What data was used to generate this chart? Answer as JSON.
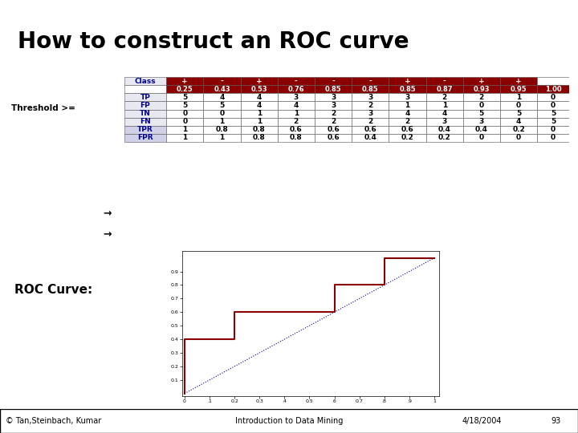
{
  "title": "How to construct an ROC curve",
  "title_fontsize": 20,
  "title_fontweight": "bold",
  "bg_color": "#ffffff",
  "bar1_color": "#00bcd4",
  "bar2_color": "#9c27b0",
  "table": {
    "col_headers": [
      "Class",
      "+",
      "-",
      "+",
      "-",
      "-",
      "-",
      "+",
      "-",
      "+",
      "+",
      ""
    ],
    "threshold_row": [
      "",
      "0.25",
      "0.43",
      "0.53",
      "0.76",
      "0.85",
      "0.85",
      "0.85",
      "0.87",
      "0.93",
      "0.95",
      "1.00"
    ],
    "rows": [
      [
        "TP",
        "5",
        "4",
        "4",
        "3",
        "3",
        "3",
        "3",
        "2",
        "2",
        "1",
        "0"
      ],
      [
        "FP",
        "5",
        "5",
        "4",
        "4",
        "3",
        "2",
        "1",
        "1",
        "0",
        "0",
        "0"
      ],
      [
        "TN",
        "0",
        "0",
        "1",
        "1",
        "2",
        "3",
        "4",
        "4",
        "5",
        "5",
        "5"
      ],
      [
        "FN",
        "0",
        "1",
        "1",
        "2",
        "2",
        "2",
        "2",
        "3",
        "3",
        "4",
        "5"
      ],
      [
        "TPR",
        "1",
        "0.8",
        "0.8",
        "0.6",
        "0.6",
        "0.6",
        "0.6",
        "0.4",
        "0.4",
        "0.2",
        "0"
      ],
      [
        "FPR",
        "1",
        "1",
        "0.8",
        "0.8",
        "0.6",
        "0.4",
        "0.2",
        "0.2",
        "0",
        "0",
        "0"
      ]
    ],
    "header_bg": "#8b0000",
    "header_text": "#ffffff",
    "threshold_bg": "#8b0000",
    "threshold_text": "#ffffff",
    "row_label_bg": "#e8e8f0",
    "row_label_text": "#00008b",
    "cell_bg": "#ffffff",
    "cell_text": "#000000",
    "highlight_rows": [
      4,
      5
    ],
    "highlight_bg": "#d0d0e8",
    "border_color": "#555555"
  },
  "roc_curve": {
    "fpr": [
      0,
      0,
      0,
      0.2,
      0.2,
      0.6,
      0.6,
      0.8,
      0.8,
      1.0,
      1.0
    ],
    "tpr": [
      0,
      0.2,
      0.4,
      0.4,
      0.6,
      0.6,
      0.8,
      0.8,
      1.0,
      1.0,
      1.0
    ],
    "color": "#8b0000",
    "linewidth": 1.5,
    "diagonal_color": "#00008b",
    "diagonal_style": ":"
  },
  "footer_left": "© Tan,Steinbach, Kumar",
  "footer_center": "Introduction to Data Mining",
  "footer_right": "4/18/2004",
  "footer_page": "93",
  "roc_label": "ROC Curve:",
  "threshold_label": "Threshold >="
}
